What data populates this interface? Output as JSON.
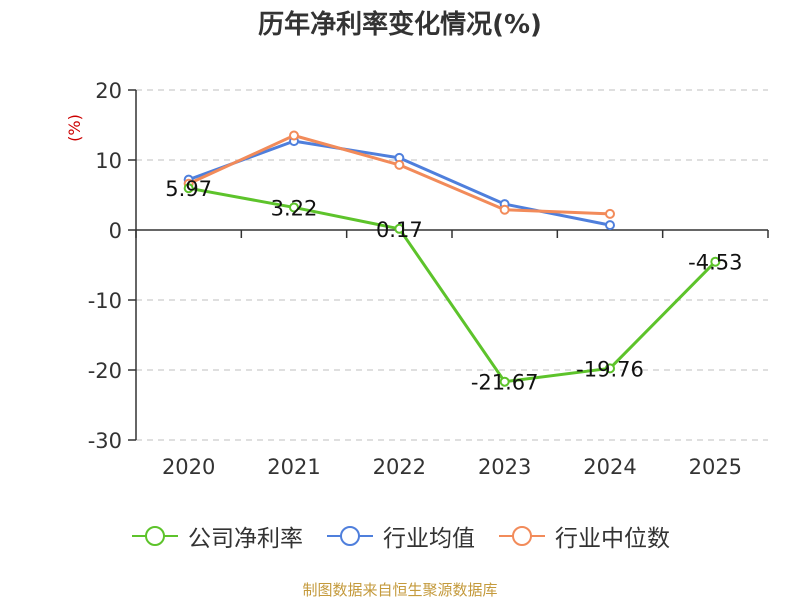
{
  "chart_data": {
    "type": "line",
    "title": "历年净利率变化情况(%)",
    "ylabel": "(%)",
    "xlabel": "",
    "categories": [
      "2020",
      "2021",
      "2022",
      "2023",
      "2024",
      "2025"
    ],
    "ylim": [
      -30,
      20
    ],
    "yticks": [
      20,
      10,
      0,
      -10,
      -20,
      -30
    ],
    "grid": true,
    "legend_position": "bottom",
    "series": [
      {
        "name": "公司净利率",
        "color": "#5dc32b",
        "values": [
          5.97,
          3.22,
          0.17,
          -21.67,
          -19.76,
          -4.53
        ],
        "labels": [
          "5.97",
          "3.22",
          "0.17",
          "-21.67",
          "-19.76",
          "-4.53"
        ]
      },
      {
        "name": "行业均值",
        "color": "#4f7fdc",
        "values": [
          7.2,
          12.7,
          10.3,
          3.7,
          0.7,
          null
        ]
      },
      {
        "name": "行业中位数",
        "color": "#f28b5a",
        "values": [
          6.6,
          13.5,
          9.3,
          2.9,
          2.3,
          null
        ]
      }
    ]
  },
  "source": {
    "text": "制图数据来自恒生聚源数据库",
    "color": "#c49a3c"
  },
  "ylabel_color": "#cc0000"
}
